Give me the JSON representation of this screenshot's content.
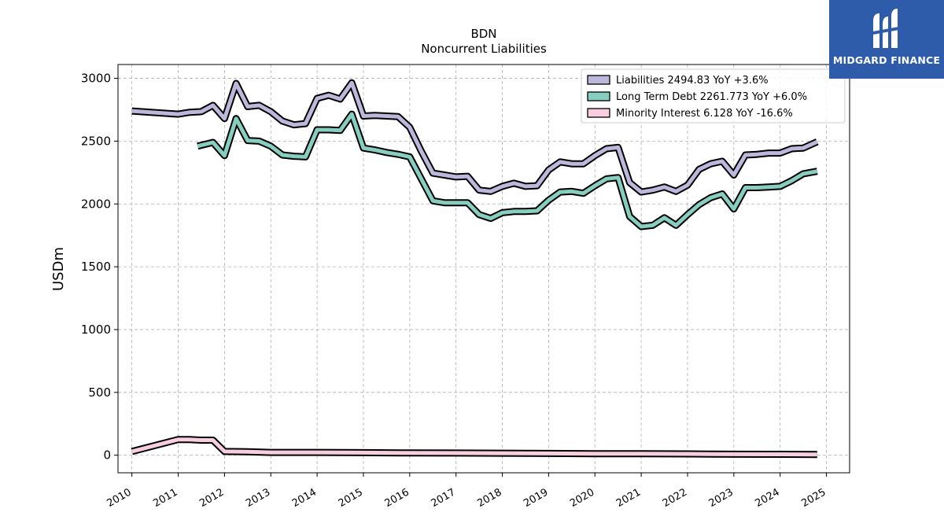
{
  "logo": {
    "name": "midgard-logo-icon",
    "text": "MIDGARD FINANCE",
    "bg_color": "#2e5cab"
  },
  "chart_data": {
    "type": "line",
    "title": "BDN",
    "subtitle": "Noncurrent  Liabilities",
    "xlabel": "",
    "ylabel": "USDm",
    "xlim": [
      2009.7,
      2025.5
    ],
    "ylim": [
      -140,
      3110
    ],
    "x_ticks": [
      2010,
      2011,
      2012,
      2013,
      2014,
      2015,
      2016,
      2017,
      2018,
      2019,
      2020,
      2021,
      2022,
      2023,
      2024,
      2025
    ],
    "y_ticks": [
      0,
      500,
      1000,
      1500,
      2000,
      2500,
      3000
    ],
    "grid": true,
    "legend_position": "top-right",
    "series": [
      {
        "name": "Liabilities  2494.83 YoY +3.6%",
        "color": "#bcb8dc",
        "x": [
          2010.0,
          2011.0,
          2011.25,
          2011.5,
          2011.75,
          2012.0,
          2012.25,
          2012.5,
          2012.75,
          2013.0,
          2013.25,
          2013.5,
          2013.75,
          2014.0,
          2014.25,
          2014.5,
          2014.75,
          2015.0,
          2015.25,
          2015.5,
          2015.75,
          2016.0,
          2016.25,
          2016.5,
          2016.75,
          2017.0,
          2017.25,
          2017.5,
          2017.75,
          2018.0,
          2018.25,
          2018.5,
          2018.75,
          2019.0,
          2019.25,
          2019.5,
          2019.75,
          2020.0,
          2020.25,
          2020.5,
          2020.75,
          2021.0,
          2021.25,
          2021.5,
          2021.75,
          2022.0,
          2022.25,
          2022.5,
          2022.75,
          2023.0,
          2023.25,
          2023.5,
          2023.75,
          2024.0,
          2024.25,
          2024.5,
          2024.8
        ],
        "values": [
          2740,
          2715,
          2730,
          2735,
          2785,
          2680,
          2960,
          2775,
          2785,
          2735,
          2660,
          2630,
          2640,
          2840,
          2865,
          2835,
          2965,
          2700,
          2705,
          2700,
          2695,
          2610,
          2420,
          2245,
          2230,
          2215,
          2220,
          2110,
          2100,
          2140,
          2165,
          2140,
          2145,
          2270,
          2335,
          2320,
          2320,
          2385,
          2440,
          2450,
          2170,
          2095,
          2110,
          2135,
          2100,
          2150,
          2275,
          2320,
          2340,
          2230,
          2390,
          2395,
          2405,
          2405,
          2440,
          2445,
          2495
        ]
      },
      {
        "name": "Long Term Debt  2261.773 YoY +6.0%",
        "color": "#86cfc0",
        "x": [
          2011.42,
          2011.75,
          2012.0,
          2012.25,
          2012.5,
          2012.75,
          2013.0,
          2013.25,
          2013.5,
          2013.75,
          2014.0,
          2014.25,
          2014.5,
          2014.75,
          2015.0,
          2015.25,
          2015.5,
          2015.75,
          2016.0,
          2016.25,
          2016.5,
          2016.75,
          2017.0,
          2017.25,
          2017.5,
          2017.75,
          2018.0,
          2018.25,
          2018.5,
          2018.75,
          2019.0,
          2019.25,
          2019.5,
          2019.75,
          2020.0,
          2020.25,
          2020.5,
          2020.75,
          2021.0,
          2021.25,
          2021.5,
          2021.75,
          2022.0,
          2022.25,
          2022.5,
          2022.75,
          2023.0,
          2023.25,
          2023.5,
          2023.75,
          2024.0,
          2024.25,
          2024.5,
          2024.8
        ],
        "values": [
          2460,
          2490,
          2385,
          2680,
          2505,
          2500,
          2460,
          2390,
          2380,
          2375,
          2590,
          2590,
          2585,
          2715,
          2445,
          2430,
          2410,
          2395,
          2375,
          2200,
          2025,
          2010,
          2010,
          2010,
          1915,
          1885,
          1930,
          1940,
          1940,
          1945,
          2030,
          2095,
          2100,
          2085,
          2145,
          2200,
          2210,
          1900,
          1820,
          1830,
          1890,
          1830,
          1915,
          1995,
          2050,
          2080,
          1960,
          2130,
          2130,
          2135,
          2140,
          2185,
          2240,
          2260
        ]
      },
      {
        "name": "Minority Interest  6.128 YoY -16.6%",
        "color": "#f9cde0",
        "x": [
          2010.0,
          2011.0,
          2011.25,
          2011.5,
          2011.75,
          2012.0,
          2012.5,
          2013.0,
          2014.0,
          2015.0,
          2016.0,
          2017.0,
          2018.0,
          2019.0,
          2020.0,
          2021.0,
          2022.0,
          2022.5,
          2023.0,
          2024.0,
          2024.8
        ],
        "values": [
          30,
          125,
          125,
          120,
          120,
          30,
          28,
          22,
          22,
          20,
          18,
          17,
          16,
          14,
          12,
          12,
          10,
          9,
          8,
          7,
          6
        ]
      }
    ]
  }
}
